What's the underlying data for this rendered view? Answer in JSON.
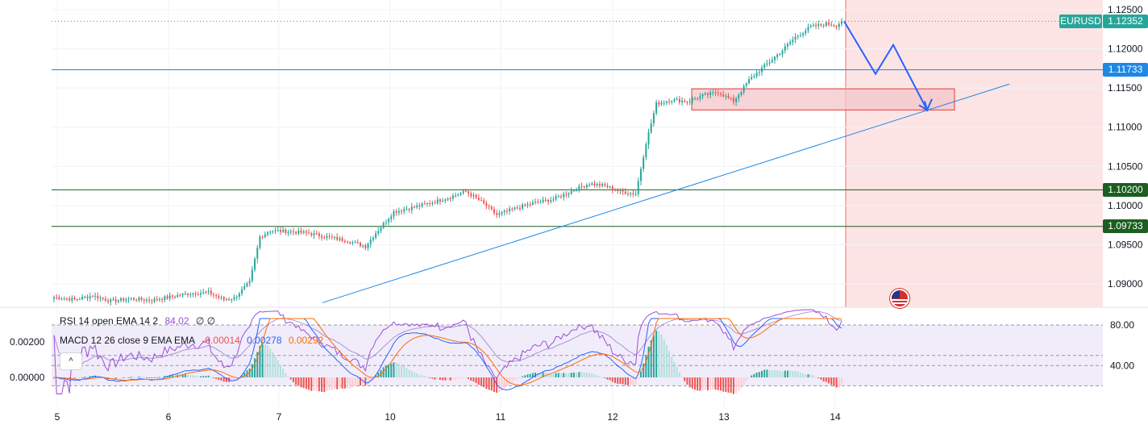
{
  "symbol": "EURUSD",
  "current_price": "1.12352",
  "colors": {
    "up": "#26a69a",
    "down": "#ef5350",
    "blue_line": "#1e88e5",
    "green_line": "#1b5e20",
    "drawing": "#2962ff",
    "projection_bg": "#fde4e4",
    "zone_fill": "#f3c6c9",
    "zone_border": "#e53935",
    "rsi": "#9c4fd8",
    "macd": "#2962ff",
    "signal": "#ff6d00",
    "osc_bg": "#f1ecfa"
  },
  "price_badges": [
    {
      "label": "1.12352",
      "color": "#26a69a",
      "price": 1.12352
    },
    {
      "label": "1.11733",
      "color": "#1e88e5",
      "price": 1.11733
    },
    {
      "label": "1.10200",
      "color": "#1b5e20",
      "price": 1.102
    },
    {
      "label": "1.09733",
      "color": "#1b5e20",
      "price": 1.09733
    }
  ],
  "legend": {
    "rsi_label": "RSI 14 open EMA 14 2",
    "rsi_value": "84.02",
    "rsi_extra": "∅ ∅",
    "macd_label": "MACD 12 26 close 9 EMA EMA",
    "macd_hist": "-0.00014",
    "macd_line": "0.00278",
    "macd_signal": "0.00292",
    "collapse_icon": "^"
  },
  "chart_data": [
    {
      "type": "candlestick",
      "title": "EURUSD",
      "y_axis_ticks": [
        "1.12500",
        "1.12000",
        "1.11500",
        "1.11000",
        "1.10500",
        "1.10000",
        "1.09500",
        "1.09000"
      ],
      "ylim": [
        1.0875,
        1.1265
      ],
      "x_axis_ticks": [
        "5",
        "6",
        "7",
        "10",
        "11",
        "12",
        "13",
        "14"
      ],
      "horizontal_levels": [
        {
          "price": 1.12352,
          "style": "dotted",
          "color": "#26a69a"
        },
        {
          "price": 1.11733,
          "style": "solid",
          "color": "#1e88e5"
        },
        {
          "price": 1.102,
          "style": "solid",
          "color": "#1b5e20"
        },
        {
          "price": 1.09733,
          "style": "solid",
          "color": "#1b5e20"
        }
      ],
      "trendline": {
        "from_price": 1.0876,
        "to_price": 1.1155,
        "note": "ascending support from day 7 toward projection"
      },
      "zone": {
        "top": 1.1149,
        "bottom": 1.1122,
        "color": "#e53935"
      },
      "projection_path_prices": [
        1.12352,
        1.1168,
        1.1205,
        1.1122,
        1.1136
      ],
      "session_anchor_prices": [
        [
          0,
          1.0883
        ],
        [
          8,
          1.088
        ],
        [
          15,
          1.0885
        ],
        [
          22,
          1.0878
        ],
        [
          30,
          1.0881
        ],
        [
          38,
          1.0879
        ],
        [
          46,
          1.0884
        ],
        [
          53,
          1.0888
        ],
        [
          60,
          1.0889
        ],
        [
          66,
          1.088
        ],
        [
          70,
          1.0882
        ],
        [
          76,
          1.0902
        ],
        [
          80,
          1.096
        ],
        [
          84,
          1.0968
        ],
        [
          90,
          1.0967
        ],
        [
          98,
          1.0965
        ],
        [
          106,
          1.096
        ],
        [
          114,
          1.0955
        ],
        [
          121,
          1.0948
        ],
        [
          125,
          1.0965
        ],
        [
          132,
          1.0992
        ],
        [
          140,
          1.0998
        ],
        [
          148,
          1.1005
        ],
        [
          155,
          1.1012
        ],
        [
          160,
          1.1018
        ],
        [
          166,
          1.1005
        ],
        [
          172,
          1.0988
        ],
        [
          178,
          1.0995
        ],
        [
          186,
          1.1003
        ],
        [
          194,
          1.1008
        ],
        [
          202,
          1.102
        ],
        [
          208,
          1.1028
        ],
        [
          214,
          1.1025
        ],
        [
          220,
          1.1018
        ],
        [
          226,
          1.1015
        ],
        [
          230,
          1.108
        ],
        [
          234,
          1.113
        ],
        [
          240,
          1.1135
        ],
        [
          246,
          1.1133
        ],
        [
          252,
          1.114
        ],
        [
          258,
          1.1145
        ],
        [
          264,
          1.1133
        ],
        [
          270,
          1.116
        ],
        [
          276,
          1.1178
        ],
        [
          282,
          1.1195
        ],
        [
          288,
          1.1215
        ],
        [
          294,
          1.1228
        ],
        [
          300,
          1.1232
        ],
        [
          304,
          1.123
        ],
        [
          306,
          1.1235
        ]
      ],
      "candle_count": 307
    },
    {
      "type": "line",
      "title": "RSI 14 open EMA 14 2 / MACD 12 26 close 9",
      "y_axis_ticks_left": [
        "0.00200",
        "0.00000"
      ],
      "y_axis_ticks_right": [
        "80.00",
        "40.00"
      ],
      "rsi_bands": [
        80,
        50,
        40,
        20
      ],
      "rsi_last": 84.02,
      "macd_last": 0.00278,
      "signal_last": 0.00292,
      "hist_last": -0.00014
    }
  ]
}
